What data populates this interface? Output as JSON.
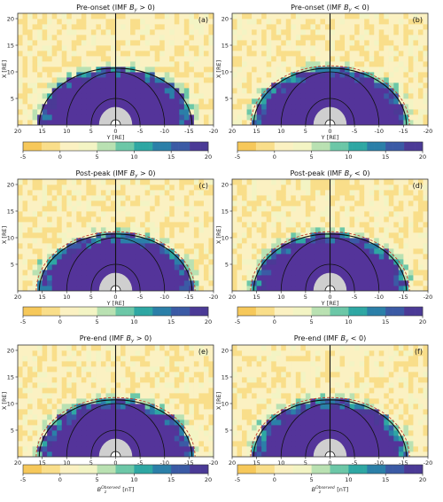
{
  "chart_data": [
    {
      "type": "heatmap",
      "title": "Pre-onset (IMF B_y > 0)",
      "title_text": "Pre-onset (IMF ",
      "title_var": "B",
      "title_sub": "y",
      "title_cond": " > 0)",
      "panel_label": "(a)",
      "xlabel": "Y [RE]",
      "ylabel": "X [RE]",
      "xlim": [
        20,
        -20
      ],
      "ylim": [
        0,
        21
      ],
      "x_ticks": [
        "20",
        "15",
        "10",
        "5",
        "0",
        "-5",
        "-10",
        "-15",
        "-20"
      ],
      "y_ticks": [
        "5",
        "10",
        "15",
        "20"
      ],
      "magnetopause_dashed": false,
      "colorbar": {
        "min": -5,
        "max": 20,
        "ticks": [
          "-5",
          "0",
          "5",
          "10",
          "15",
          "20"
        ],
        "label": ""
      }
    },
    {
      "type": "heatmap",
      "title": "Pre-onset (IMF B_y < 0)",
      "title_text": "Pre-onset (IMF ",
      "title_var": "B",
      "title_sub": "y",
      "title_cond": " < 0)",
      "panel_label": "(b)",
      "xlabel": "Y [RE]",
      "ylabel": "X [RE]",
      "xlim": [
        20,
        -20
      ],
      "ylim": [
        0,
        21
      ],
      "x_ticks": [
        "20",
        "15",
        "10",
        "5",
        "0",
        "-5",
        "-10",
        "-15",
        "-20"
      ],
      "y_ticks": [
        "5",
        "10",
        "15",
        "20"
      ],
      "magnetopause_dashed": true,
      "colorbar": {
        "min": -5,
        "max": 20,
        "ticks": [
          "-5",
          "0",
          "5",
          "10",
          "15",
          "20"
        ],
        "label": ""
      }
    },
    {
      "type": "heatmap",
      "title": "Post-peak (IMF B_y > 0)",
      "title_text": "Post-peak (IMF ",
      "title_var": "B",
      "title_sub": "y",
      "title_cond": " > 0)",
      "panel_label": "(c)",
      "xlabel": "Y [RE]",
      "ylabel": "X [RE]",
      "xlim": [
        20,
        -20
      ],
      "ylim": [
        0,
        21
      ],
      "x_ticks": [
        "20",
        "15",
        "10",
        "5",
        "0",
        "-5",
        "-10",
        "-15",
        "-20"
      ],
      "y_ticks": [
        "5",
        "10",
        "15",
        "20"
      ],
      "magnetopause_dashed": true,
      "colorbar": {
        "min": -5,
        "max": 20,
        "ticks": [
          "-5",
          "0",
          "5",
          "10",
          "15",
          "20"
        ],
        "label": ""
      }
    },
    {
      "type": "heatmap",
      "title": "Post-peak (IMF B_y < 0)",
      "title_text": "Post-peak (IMF ",
      "title_var": "B",
      "title_sub": "y",
      "title_cond": " < 0)",
      "panel_label": "(d)",
      "xlabel": "Y [RE]",
      "ylabel": "X [RE]",
      "xlim": [
        20,
        -20
      ],
      "ylim": [
        0,
        21
      ],
      "x_ticks": [
        "20",
        "15",
        "10",
        "5",
        "0",
        "-5",
        "-10",
        "-15",
        "-20"
      ],
      "y_ticks": [
        "5",
        "10",
        "15",
        "20"
      ],
      "magnetopause_dashed": true,
      "colorbar": {
        "min": -5,
        "max": 20,
        "ticks": [
          "-5",
          "0",
          "5",
          "10",
          "15",
          "20"
        ],
        "label": ""
      }
    },
    {
      "type": "heatmap",
      "title": "Pre-end (IMF B_y > 0)",
      "title_text": "Pre-end (IMF ",
      "title_var": "B",
      "title_sub": "y",
      "title_cond": " > 0)",
      "panel_label": "(e)",
      "xlabel": "Y [RE]",
      "ylabel": "X [RE]",
      "xlim": [
        20,
        -20
      ],
      "ylim": [
        0,
        21
      ],
      "x_ticks": [
        "20",
        "15",
        "10",
        "5",
        "0",
        "-5",
        "-10",
        "-15",
        "-20"
      ],
      "y_ticks": [
        "5",
        "10",
        "15",
        "20"
      ],
      "magnetopause_dashed": true,
      "colorbar": {
        "min": -5,
        "max": 20,
        "ticks": [
          "-5",
          "0",
          "5",
          "10",
          "15",
          "20"
        ],
        "label": "B_z^Observed [nT]",
        "label_var": "B",
        "label_sub": "z",
        "label_sup": "Observed",
        "label_unit": " [nT]"
      }
    },
    {
      "type": "heatmap",
      "title": "Pre-end (IMF B_y < 0)",
      "title_text": "Pre-end (IMF ",
      "title_var": "B",
      "title_sub": "y",
      "title_cond": " < 0)",
      "panel_label": "(f)",
      "xlabel": "Y [RE]",
      "ylabel": "X [RE]",
      "xlim": [
        20,
        -20
      ],
      "ylim": [
        0,
        21
      ],
      "x_ticks": [
        "20",
        "15",
        "10",
        "5",
        "0",
        "-5",
        "-10",
        "-15",
        "-20"
      ],
      "y_ticks": [
        "5",
        "10",
        "15",
        "20"
      ],
      "magnetopause_dashed": true,
      "colorbar": {
        "min": -5,
        "max": 20,
        "ticks": [
          "-5",
          "0",
          "5",
          "10",
          "15",
          "20"
        ],
        "label": "B_z^Observed [nT]",
        "label_var": "B",
        "label_sub": "z",
        "label_sup": "Observed",
        "label_unit": " [nT]"
      }
    }
  ],
  "colors": {
    "colormap": [
      "#f6c85a",
      "#f9de8a",
      "#fbf1c2",
      "#f3f4c4",
      "#b9e1b2",
      "#6cc7a7",
      "#2ea7a3",
      "#2b7fa8",
      "#3b5aa5",
      "#4b3a96"
    ],
    "saturated": "#54349a",
    "earth_core": "#cfcfcf",
    "dashed_line": "#c0392b"
  }
}
